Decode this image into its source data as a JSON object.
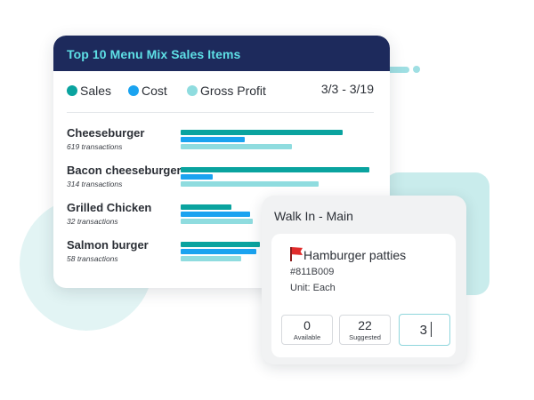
{
  "colors": {
    "header_bg": "#1d2a5c",
    "title_accent": "#5ee0e6",
    "sales": "#0aa39f",
    "cost": "#1aa3f0",
    "gross_profit": "#8fdcdf",
    "highlight_border": "#8fd6dc"
  },
  "sales_card": {
    "title": "Top 10 Menu Mix Sales Items",
    "date_range": "3/3 - 3/19",
    "legend": [
      {
        "label": "Sales",
        "color": "#0aa39f"
      },
      {
        "label": "Cost",
        "color": "#1aa3f0"
      },
      {
        "label": "Gross Profit",
        "color": "#8fdcdf"
      }
    ],
    "items": [
      {
        "name": "Cheeseburger",
        "transactions": "619 transactions",
        "sales": 0.86,
        "cost": 0.34,
        "gross_profit": 0.59
      },
      {
        "name": "Bacon cheeseburger",
        "transactions": "314 transactions",
        "sales": 1.0,
        "cost": 0.17,
        "gross_profit": 0.73
      },
      {
        "name": "Grilled Chicken",
        "transactions": "32 transactions",
        "sales": 0.27,
        "cost": 0.37,
        "gross_profit": 0.38
      },
      {
        "name": "Salmon burger",
        "transactions": "58 transactions",
        "sales": 0.42,
        "cost": 0.4,
        "gross_profit": 0.32
      }
    ]
  },
  "inventory_card": {
    "title": "Walk In - Main",
    "product_icon": "red-flag-icon",
    "product_name": "Hamburger patties",
    "product_code": "#811B009",
    "unit": "Unit: Each",
    "available": {
      "value": "0",
      "label": "Available"
    },
    "suggested": {
      "value": "22",
      "label": "Suggested"
    },
    "entry_value": "3"
  }
}
